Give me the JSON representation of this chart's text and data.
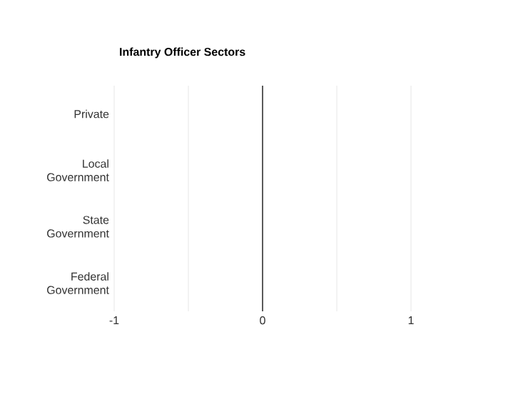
{
  "chart_data": {
    "type": "bar",
    "orientation": "horizontal",
    "title": "Infantry Officer Sectors",
    "categories": [
      "Private",
      "Local Government",
      "State Government",
      "Federal Government"
    ],
    "values": [
      0,
      0,
      0,
      0
    ],
    "ref_lines": [
      {
        "axis": "x",
        "value": 0,
        "color": "#333333"
      }
    ],
    "xlim": [
      -1,
      1
    ],
    "xticks": [
      -1,
      {
        "value": -0.5,
        "label": null
      },
      0,
      {
        "value": 0.5,
        "label": null
      },
      1
    ],
    "grid": "x"
  }
}
